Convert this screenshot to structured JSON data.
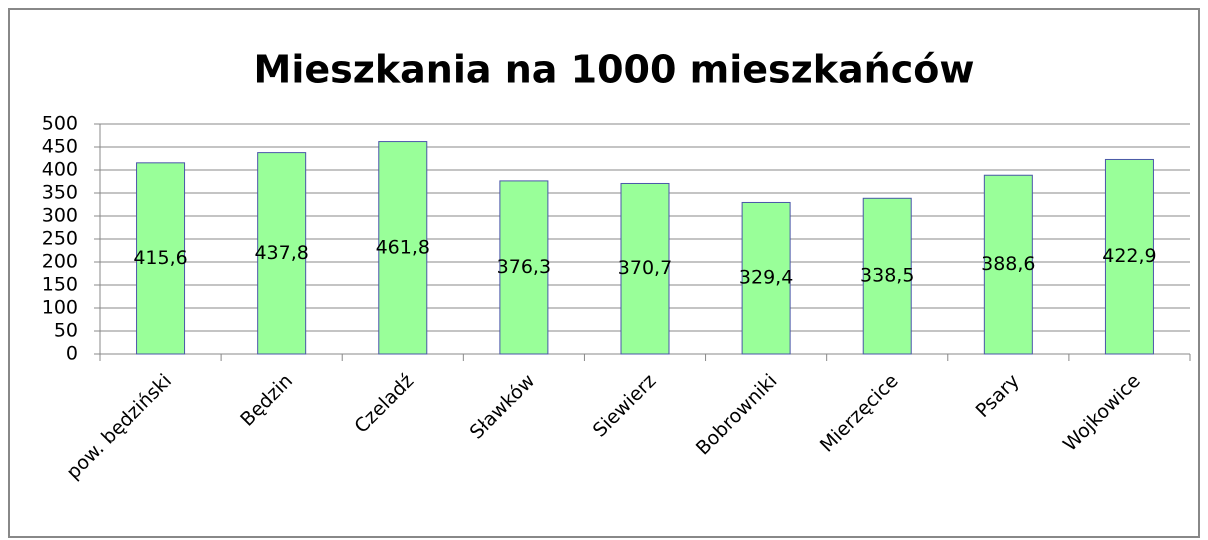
{
  "chart_data": {
    "type": "bar",
    "title": "Mieszkania na 1000 mieszkańców",
    "categories": [
      "pow. będziński",
      "Będzin",
      "Czeladź",
      "Sławków",
      "Siewierz",
      "Bobrowniki",
      "Mierzęcice",
      "Psary",
      "Wojkowice"
    ],
    "values": [
      415.6,
      437.8,
      461.8,
      376.3,
      370.7,
      329.4,
      338.5,
      388.6,
      422.9
    ],
    "value_labels": [
      "415,6",
      "437,8",
      "461,8",
      "376,3",
      "370,7",
      "329,4",
      "338,5",
      "388,6",
      "422,9"
    ],
    "color": "#99ff99",
    "ylim": [
      0,
      500
    ],
    "yticks": [
      0,
      50,
      100,
      150,
      200,
      250,
      300,
      350,
      400,
      450,
      500
    ],
    "grid": true
  }
}
